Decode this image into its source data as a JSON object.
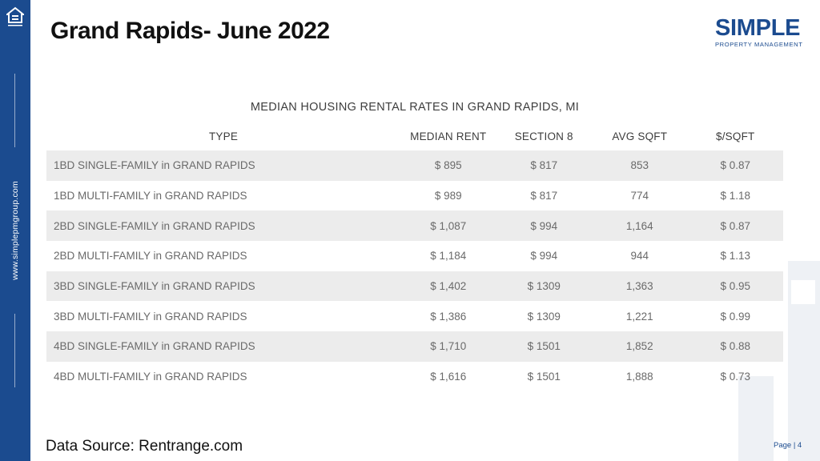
{
  "sidebar": {
    "url": "www.simplepmgroup.com",
    "icon": "equal-housing-opportunity-icon",
    "color": "#1b4b8f"
  },
  "title": "Grand Rapids- June 2022",
  "logo": {
    "main": "SIMPLE",
    "sub": "PROPERTY MANAGEMENT"
  },
  "table": {
    "title": "MEDIAN HOUSING RENTAL RATES IN GRAND RAPIDS, MI",
    "headers": [
      "TYPE",
      "MEDIAN RENT",
      "SECTION 8",
      "AVG SQFT",
      "$/SQFT"
    ],
    "rows": [
      [
        "1BD SINGLE-FAMILY in GRAND RAPIDS",
        "$ 895",
        "$ 817",
        "853",
        "$ 0.87"
      ],
      [
        "1BD MULTI-FAMILY in GRAND RAPIDS",
        "$ 989",
        "$ 817",
        "774",
        "$ 1.18"
      ],
      [
        "2BD SINGLE-FAMILY in GRAND RAPIDS",
        "$ 1,087",
        "$ 994",
        "1,164",
        "$ 0.87"
      ],
      [
        "2BD MULTI-FAMILY in GRAND RAPIDS",
        "$ 1,184",
        "$ 994",
        "944",
        "$ 1.13"
      ],
      [
        "3BD SINGLE-FAMILY in GRAND RAPIDS",
        "$ 1,402",
        "$ 1309",
        "1,363",
        "$ 0.95"
      ],
      [
        "3BD MULTI-FAMILY in GRAND RAPIDS",
        "$ 1,386",
        "$ 1309",
        "1,221",
        "$ 0.99"
      ],
      [
        "4BD SINGLE-FAMILY in GRAND RAPIDS",
        "$ 1,710",
        "$ 1501",
        "1,852",
        "$ 0.88"
      ],
      [
        "4BD MULTI-FAMILY in GRAND RAPIDS",
        "$ 1,616",
        "$ 1501",
        "1,888",
        "$ 0.73"
      ]
    ]
  },
  "source": "Data Source: Rentrange.com",
  "page": "Page | 4"
}
